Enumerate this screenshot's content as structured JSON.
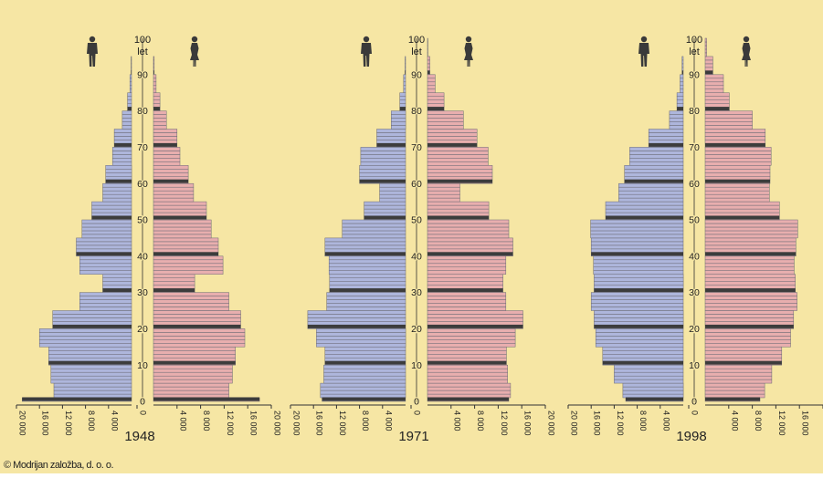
{
  "colors": {
    "background": "#f6e6a4",
    "male_fill": "#aeb6dc",
    "female_fill": "#e8aeae",
    "bar_stroke": "#6a6a74",
    "decade_bar": "#3c3c3c",
    "text": "#222222"
  },
  "icons": {
    "male": "man-icon",
    "female": "woman-icon"
  },
  "copyright": "© Modrijan založba, d. o. o.",
  "chart_data": [
    {
      "type": "bar",
      "title": "1948",
      "age_axis_top_label": "100",
      "age_axis_unit": "let",
      "age_ticks": [
        "0",
        "10",
        "20",
        "30",
        "40",
        "50",
        "60",
        "70",
        "80",
        "90"
      ],
      "x_tick_labels": [
        "20 000",
        "16 000",
        "12 000",
        "8 000",
        "4 000",
        "0",
        "4 000",
        "8 000",
        "12 000",
        "16 000",
        "20 000"
      ],
      "xlim": [
        0,
        20000
      ],
      "ylim": [
        0,
        100
      ],
      "age_groups": [
        "0",
        "1-4",
        "5-9",
        "10-14",
        "15-19",
        "20-24",
        "25-29",
        "30-34",
        "35-39",
        "40-44",
        "45-49",
        "50-54",
        "55-59",
        "60-64",
        "65-69",
        "70-74",
        "75-79",
        "80-84",
        "85-89",
        "90-94",
        "95-99"
      ],
      "series": [
        {
          "name": "moški",
          "values": [
            19000,
            13500,
            14000,
            14400,
            16000,
            13700,
            9000,
            5000,
            9000,
            9600,
            8600,
            6900,
            5000,
            4500,
            3300,
            3000,
            1600,
            700,
            280,
            80,
            15
          ]
        },
        {
          "name": "ženske",
          "values": [
            18000,
            12800,
            13400,
            13900,
            15500,
            14800,
            12800,
            7000,
            11800,
            11000,
            9800,
            9000,
            6800,
            5900,
            4500,
            4000,
            2200,
            1100,
            450,
            120,
            25
          ]
        }
      ]
    },
    {
      "type": "bar",
      "title": "1971",
      "age_axis_top_label": "100",
      "age_axis_unit": "let",
      "age_ticks": [
        "0",
        "10",
        "20",
        "30",
        "40",
        "50",
        "60",
        "70",
        "80",
        "90"
      ],
      "x_tick_labels": [
        "20 000",
        "16 000",
        "12 000",
        "8 000",
        "4 000",
        "0",
        "4 000",
        "8 000",
        "12 000",
        "16 000",
        "20 000"
      ],
      "xlim": [
        0,
        20000
      ],
      "ylim": [
        0,
        100
      ],
      "age_groups": [
        "0",
        "1-4",
        "5-9",
        "10-14",
        "15-19",
        "20-24",
        "25-29",
        "30-34",
        "35-39",
        "40-44",
        "45-49",
        "50-54",
        "55-59",
        "60-64",
        "65-69",
        "70-74",
        "75-79",
        "80-84",
        "85-89",
        "90-94",
        "95-99"
      ],
      "series": [
        {
          "name": "moški",
          "values": [
            14500,
            14800,
            14200,
            14000,
            15500,
            17000,
            13700,
            13200,
            13300,
            14000,
            11000,
            7200,
            4500,
            8000,
            7800,
            5000,
            2500,
            1000,
            350,
            100,
            20
          ]
        },
        {
          "name": "ženske",
          "values": [
            13800,
            14100,
            13600,
            13400,
            14900,
            16200,
            13300,
            12800,
            13300,
            14500,
            13800,
            10400,
            5500,
            11000,
            10300,
            8400,
            6100,
            2800,
            1300,
            400,
            60
          ]
        }
      ]
    },
    {
      "type": "bar",
      "title": "1998",
      "age_axis_top_label": "100",
      "age_axis_unit": "let",
      "age_ticks": [
        "0",
        "10",
        "20",
        "30",
        "40",
        "50",
        "60",
        "70",
        "80",
        "90"
      ],
      "x_tick_labels": [
        "20 000",
        "16 000",
        "12 000",
        "8 000",
        "4 000",
        "0",
        "4 000",
        "8 000",
        "12 000",
        "16 000",
        "20 000"
      ],
      "xlim": [
        0,
        20000
      ],
      "ylim": [
        0,
        100
      ],
      "age_groups": [
        "0",
        "1-4",
        "5-9",
        "10-14",
        "15-19",
        "20-24",
        "25-29",
        "30-34",
        "35-39",
        "40-44",
        "45-49",
        "50-54",
        "55-59",
        "60-64",
        "65-69",
        "70-74",
        "75-79",
        "80-84",
        "85-89",
        "90-94",
        "95-99"
      ],
      "series": [
        {
          "name": "moški",
          "values": [
            10000,
            10500,
            12000,
            14000,
            15200,
            15500,
            16000,
            15500,
            15600,
            16000,
            16100,
            13500,
            11200,
            10200,
            9300,
            6000,
            2400,
            1100,
            550,
            200,
            40
          ]
        },
        {
          "name": "ženske",
          "values": [
            9300,
            10100,
            11300,
            13000,
            14500,
            15000,
            15600,
            15300,
            15100,
            15400,
            15700,
            12600,
            10900,
            11000,
            11200,
            10200,
            8000,
            4100,
            3100,
            1300,
            250
          ]
        }
      ]
    }
  ]
}
